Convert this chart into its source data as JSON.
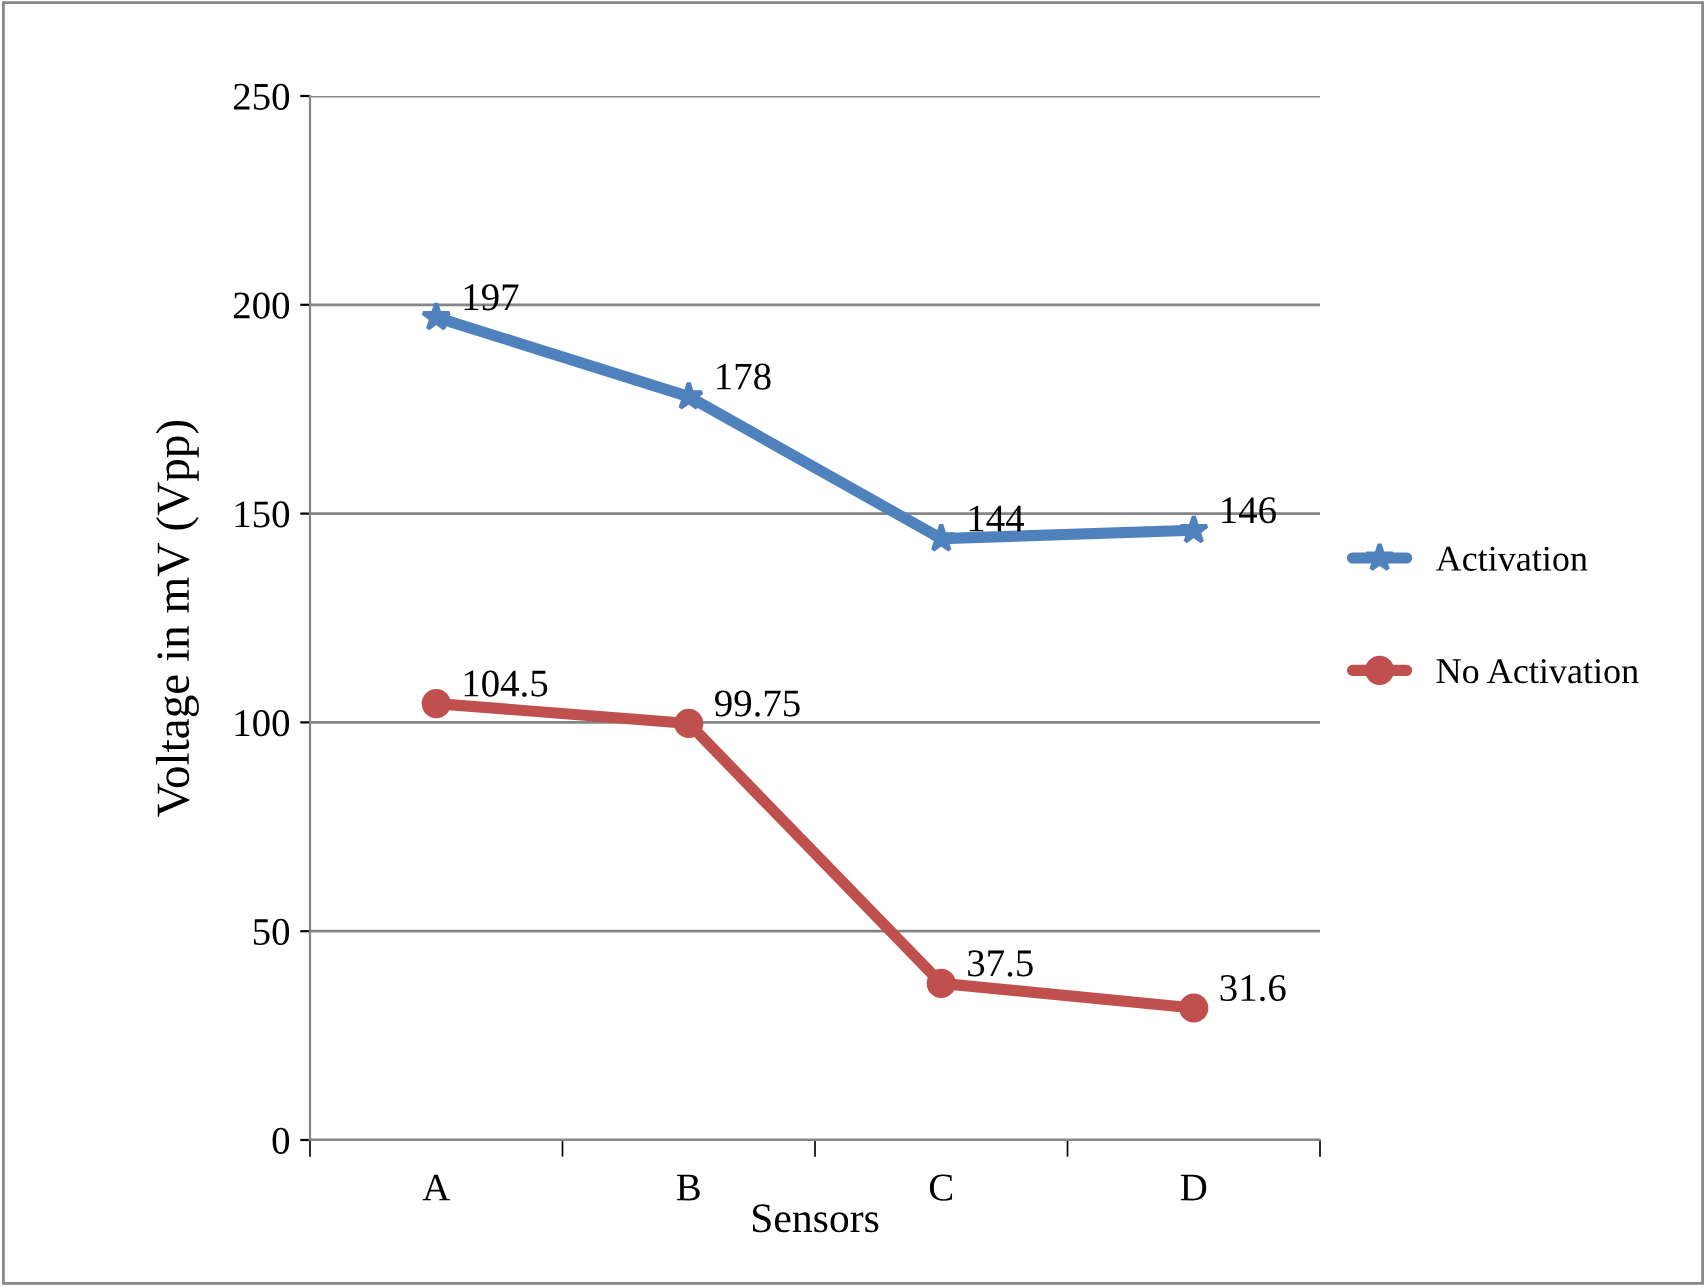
{
  "chart_data": {
    "type": "line",
    "xlabel": "Sensors",
    "ylabel": "Voltage in mV (Vpp)",
    "categories": [
      "A",
      "B",
      "C",
      "D"
    ],
    "series": [
      {
        "name": "Activation",
        "color": "#4f81bd",
        "marker": "star",
        "values": [
          197,
          178,
          144,
          146
        ]
      },
      {
        "name": "No Activation",
        "color": "#c0504d",
        "marker": "circle",
        "values": [
          104.5,
          99.75,
          37.5,
          31.6
        ]
      }
    ],
    "ylim": [
      0,
      250
    ],
    "yticks": [
      0,
      50,
      100,
      150,
      200,
      250
    ],
    "grid": "y",
    "legend": "right",
    "data_labels": true,
    "line_style": "solid"
  }
}
